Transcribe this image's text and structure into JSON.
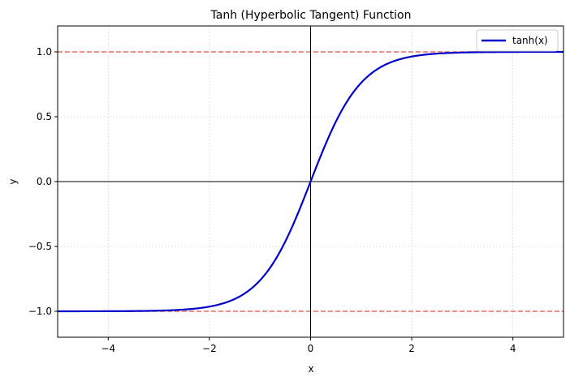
{
  "chart_data": {
    "type": "line",
    "title": "Tanh (Hyperbolic Tangent) Function",
    "xlabel": "x",
    "ylabel": "y",
    "xlim": [
      -5,
      5
    ],
    "ylim": [
      -1.2,
      1.2
    ],
    "x_ticks": [
      -4,
      -2,
      0,
      2,
      4
    ],
    "x_tick_labels": [
      "−4",
      "−2",
      "0",
      "2",
      "4"
    ],
    "y_ticks": [
      -1.0,
      -0.5,
      0.0,
      0.5,
      1.0
    ],
    "y_tick_labels": [
      "−1.0",
      "−0.5",
      "0.0",
      "0.5",
      "1.0"
    ],
    "grid": true,
    "legend_position": "top-right",
    "series": [
      {
        "name": "tanh(x)",
        "color": "#0000cc",
        "x": [
          -5,
          -4.5,
          -4,
          -3.5,
          -3,
          -2.5,
          -2,
          -1.75,
          -1.5,
          -1.25,
          -1,
          -0.75,
          -0.5,
          -0.25,
          0,
          0.25,
          0.5,
          0.75,
          1,
          1.25,
          1.5,
          1.75,
          2,
          2.5,
          3,
          3.5,
          4,
          4.5,
          5
        ],
        "y": [
          -0.9999,
          -0.9998,
          -0.9993,
          -0.9982,
          -0.9951,
          -0.9866,
          -0.964,
          -0.9414,
          -0.9051,
          -0.8483,
          -0.7616,
          -0.6351,
          -0.4621,
          -0.2449,
          0.0,
          0.2449,
          0.4621,
          0.6351,
          0.7616,
          0.8483,
          0.9051,
          0.9414,
          0.964,
          0.9866,
          0.9951,
          0.9982,
          0.9993,
          0.9998,
          0.9999
        ]
      }
    ],
    "reference_lines": [
      {
        "orientation": "horizontal",
        "y": 1.0,
        "style": "dashed",
        "color": "#e8534a"
      },
      {
        "orientation": "horizontal",
        "y": -1.0,
        "style": "dashed",
        "color": "#e8534a"
      },
      {
        "orientation": "horizontal",
        "y": 0.0,
        "style": "solid",
        "color": "#000000"
      },
      {
        "orientation": "vertical",
        "x": 0.0,
        "style": "solid",
        "color": "#000000"
      }
    ]
  }
}
